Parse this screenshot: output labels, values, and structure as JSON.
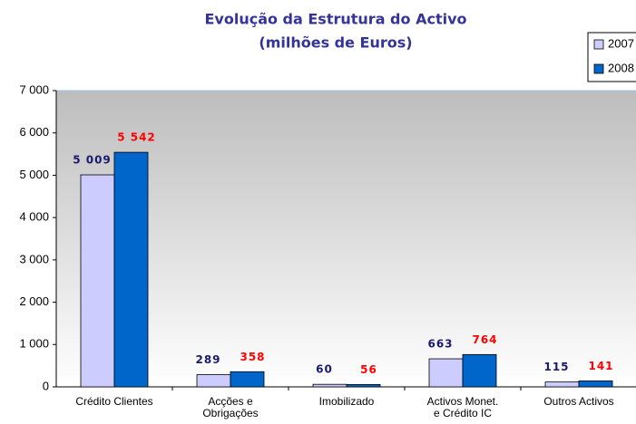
{
  "chart_data": {
    "type": "bar",
    "title": "Evolução da Estrutura do Activo",
    "subtitle": "(milhões de Euros)",
    "categories": [
      "Crédito Clientes",
      "Acções e Obrigações",
      "Imobilizado",
      "Activos Monet. e Crédito IC",
      "Outros Activos"
    ],
    "series": [
      {
        "name": "2007",
        "color": "#ccccff",
        "label_color": "#1a1a6e",
        "values": [
          5009,
          289,
          60,
          663,
          115
        ],
        "value_labels": [
          "5 009",
          "289",
          "60",
          "663",
          "115"
        ]
      },
      {
        "name": "2008",
        "color": "#0066cc",
        "label_color": "#ff0000",
        "values": [
          5542,
          358,
          56,
          764,
          141
        ],
        "value_labels": [
          "5 542",
          "358",
          "56",
          "764",
          "141"
        ]
      }
    ],
    "ylim": [
      0,
      7000
    ],
    "yticks": [
      0,
      {
        "value": 1000,
        "label": "1 000"
      },
      {
        "value": 2000,
        "label": "2 000"
      },
      {
        "value": 3000,
        "label": "3 000"
      },
      {
        "value": 4000,
        "label": "4 000"
      },
      {
        "value": 5000,
        "label": "5 000"
      },
      {
        "value": 6000,
        "label": "6 000"
      },
      {
        "value": 7000,
        "label": "7 000"
      }
    ]
  }
}
